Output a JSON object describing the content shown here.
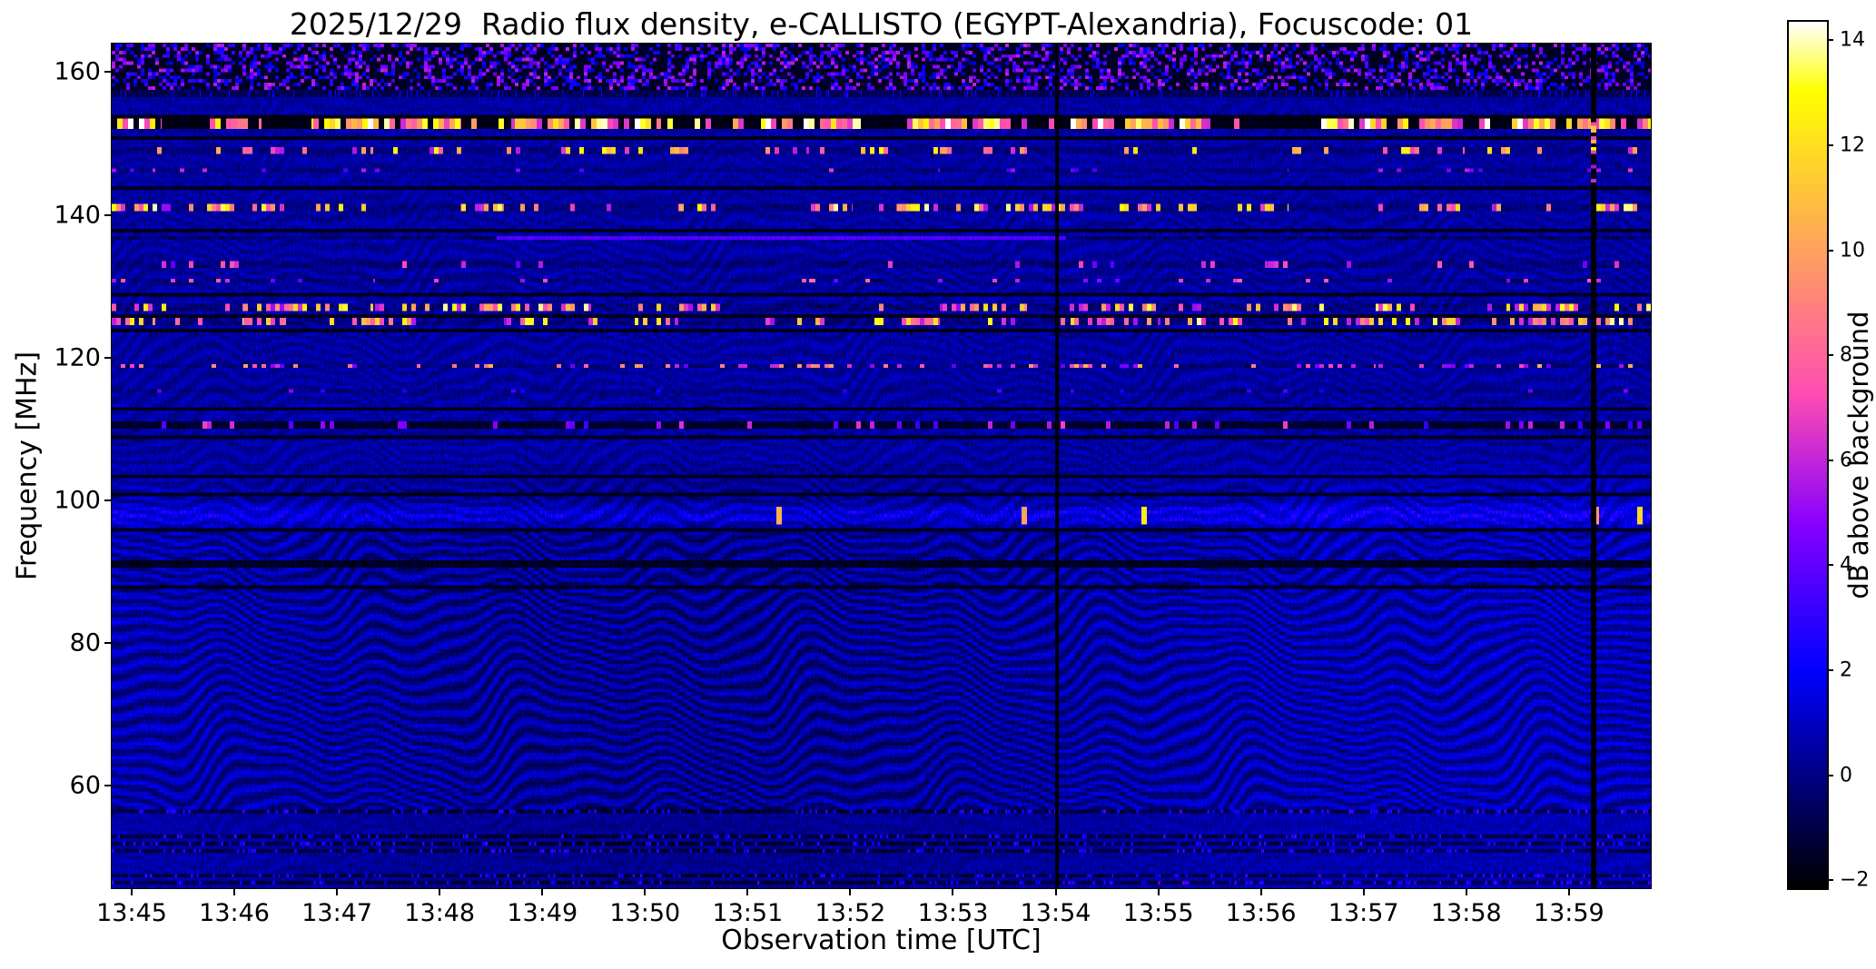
{
  "chart_data": {
    "type": "heatmap",
    "title": "2025/12/29  Radio flux density, e-CALLISTO (EGYPT-Alexandria), Focuscode: 01",
    "xlabel": "Observation time [UTC]",
    "ylabel": "Frequency [MHz]",
    "x_axis": {
      "tick_labels": [
        "13:45",
        "13:46",
        "13:47",
        "13:48",
        "13:49",
        "13:50",
        "13:51",
        "13:52",
        "13:53",
        "13:54",
        "13:55",
        "13:56",
        "13:57",
        "13:58",
        "13:59"
      ],
      "first_tick_frac": 0.013,
      "tick_step_frac": 0.0667
    },
    "y_ticks": [
      160,
      140,
      120,
      100,
      80,
      60
    ],
    "y_range_mhz": [
      45.6,
      164.0
    ],
    "colorbar": {
      "label": "dB above background",
      "ticks": [
        14,
        12,
        10,
        8,
        6,
        4,
        2,
        0,
        -2
      ],
      "vmin": -2.15,
      "vmax": 14.35,
      "colormap": "gnuplot2"
    },
    "features": {
      "top_speckle_band_mhz": [
        157.3,
        164.0
      ],
      "bottom_speckle_band_mhz": [
        45.6,
        56.5
      ],
      "background_level_db": 0.5,
      "ripple_description": "wavy ionospheric interference fringes, strongest 55-100 MHz"
    },
    "vertical_gaps": [
      {
        "frac": 0.614,
        "width_frac": 0.0022,
        "dots": false
      },
      {
        "frac": 0.9625,
        "width_frac": 0.0035,
        "dots": true
      }
    ],
    "rfi_lines": [
      {
        "f": 152.9,
        "hw": 1.0,
        "type": "burst",
        "density": 0.5,
        "imin": 6,
        "imax": 15
      },
      {
        "f": 150.8,
        "hw": 0.35,
        "type": "dark"
      },
      {
        "f": 148.8,
        "hw": 0.5,
        "type": "dots",
        "density": 0.16,
        "imin": 5,
        "imax": 13
      },
      {
        "f": 146.1,
        "hw": 0.3,
        "type": "dots",
        "density": 0.05,
        "imin": 3,
        "imax": 7
      },
      {
        "f": 144.0,
        "hw": 0.26,
        "type": "dark"
      },
      {
        "f": 141.2,
        "hw": 0.45,
        "type": "dots",
        "density": 0.28,
        "imin": 5,
        "imax": 14
      },
      {
        "f": 137.9,
        "hw": 0.3,
        "type": "dark"
      },
      {
        "f": 136.8,
        "hw": 0.26,
        "type": "segment",
        "x0": 0.25,
        "x1": 0.62,
        "value": 3.4
      },
      {
        "f": 133.0,
        "hw": 0.3,
        "type": "dots",
        "density": 0.07,
        "imin": 3,
        "imax": 8
      },
      {
        "f": 130.9,
        "hw": 0.3,
        "type": "dots",
        "density": 0.09,
        "imin": 4,
        "imax": 9
      },
      {
        "f": 128.7,
        "hw": 0.3,
        "type": "dark"
      },
      {
        "f": 127.2,
        "hw": 0.55,
        "type": "dots",
        "density": 0.32,
        "imin": 5,
        "imax": 14
      },
      {
        "f": 125.7,
        "hw": 0.3,
        "type": "dark"
      },
      {
        "f": 124.9,
        "hw": 0.5,
        "type": "dots",
        "density": 0.28,
        "imin": 5,
        "imax": 14
      },
      {
        "f": 123.8,
        "hw": 0.28,
        "type": "dark"
      },
      {
        "f": 118.8,
        "hw": 0.45,
        "type": "dots",
        "density": 0.17,
        "imin": 4,
        "imax": 11
      },
      {
        "f": 115.1,
        "hw": 0.3,
        "type": "dots",
        "density": 0.04,
        "imin": 2,
        "imax": 5
      },
      {
        "f": 112.7,
        "hw": 0.3,
        "type": "dark"
      },
      {
        "f": 110.7,
        "hw": 0.55,
        "type": "darkdots",
        "density": 0.12,
        "imin": 3,
        "imax": 7
      },
      {
        "f": 108.7,
        "hw": 0.26,
        "type": "dark"
      },
      {
        "f": 103.4,
        "hw": 0.3,
        "type": "dark"
      },
      {
        "f": 100.7,
        "hw": 0.3,
        "type": "dark"
      },
      {
        "f": 97.9,
        "hw": 1.7,
        "type": "glow",
        "value": 1.2,
        "density": 0.02,
        "imin": 7,
        "imax": 14
      },
      {
        "f": 95.8,
        "hw": 0.3,
        "type": "dark"
      },
      {
        "f": 91.1,
        "hw": 0.35,
        "type": "dark"
      },
      {
        "f": 87.9,
        "hw": 0.3,
        "type": "dark"
      }
    ]
  }
}
